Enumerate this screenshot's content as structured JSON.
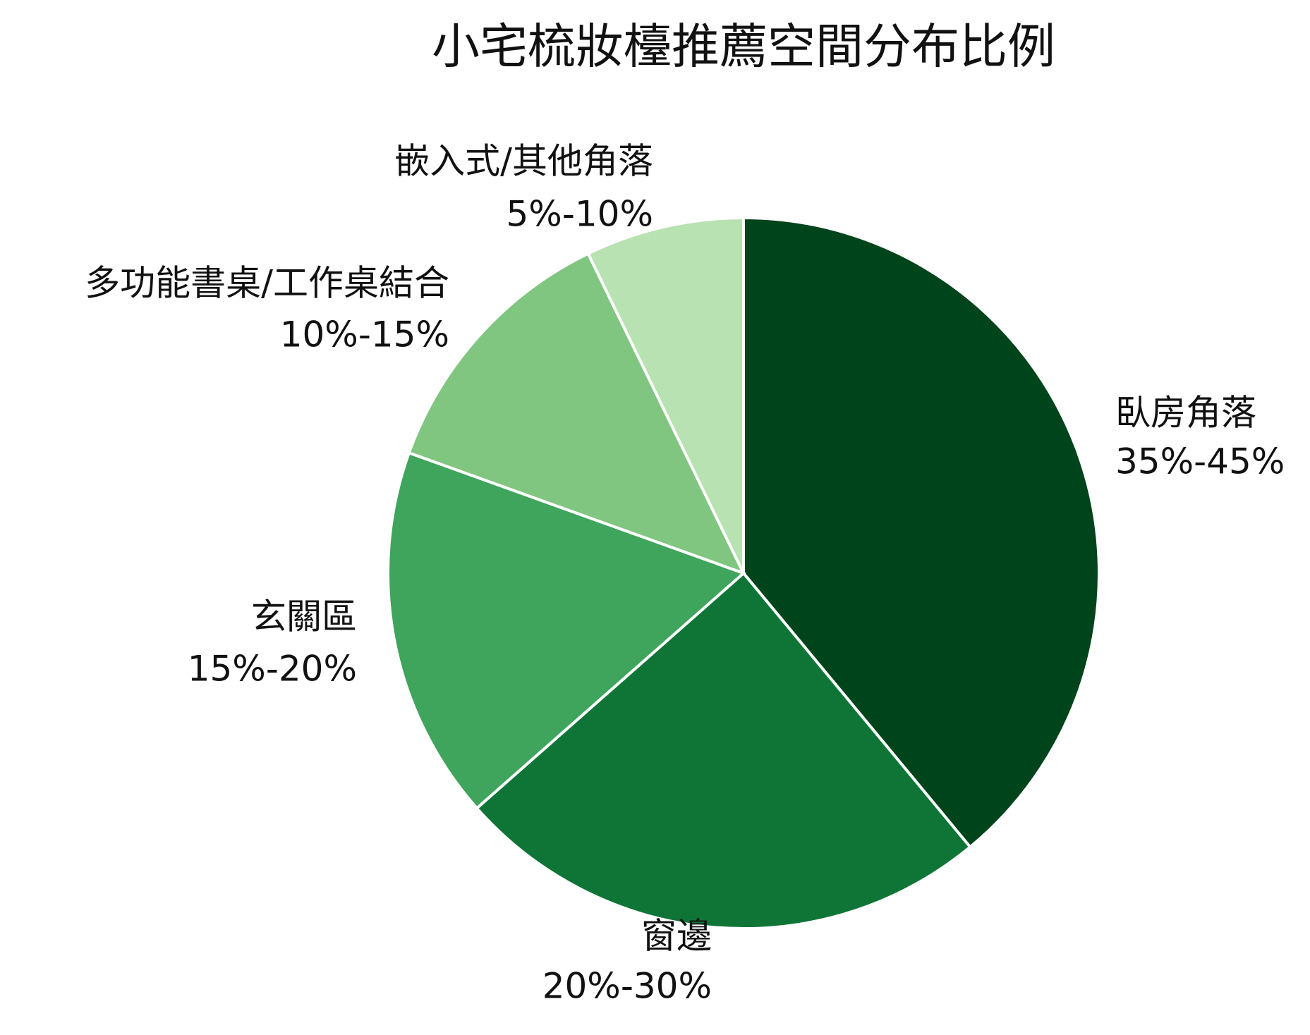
{
  "chart_data": {
    "type": "pie",
    "title": "小宅梳妝檯推薦空間分布比例",
    "categories": [
      "臥房角落",
      "窗邊",
      "玄關區",
      "多功能書桌/工作桌結合",
      "嵌入式/其他角落"
    ],
    "values": [
      39,
      24.5,
      17,
      12.3,
      7.2
    ],
    "value_labels": [
      "35%-45%",
      "20%-30%",
      "15%-20%",
      "10%-15%",
      "5%-10%"
    ],
    "colors": [
      "#00441b",
      "#0f7536",
      "#3fa45c",
      "#80c680",
      "#b8e2b1"
    ]
  }
}
